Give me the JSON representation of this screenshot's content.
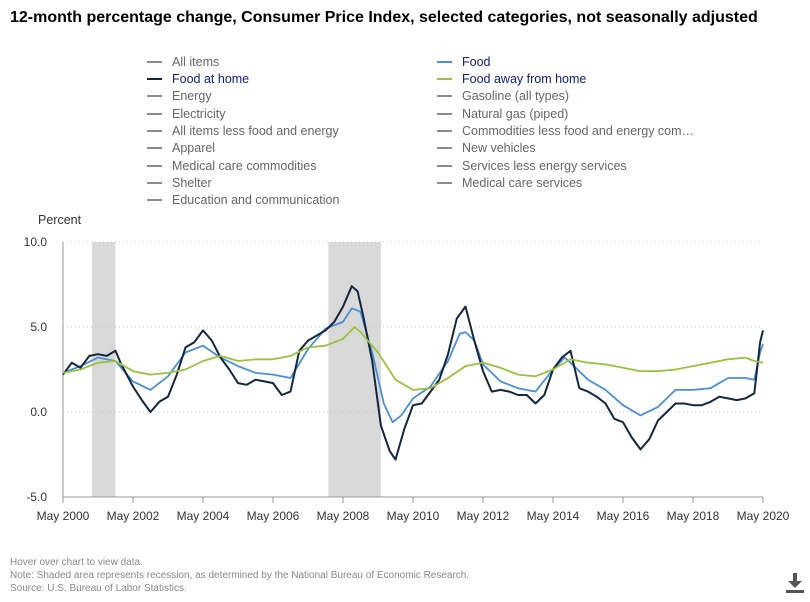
{
  "title": "12-month percentage change, Consumer Price Index, selected categories, not seasonally adjusted",
  "legend": [
    {
      "label": "All items",
      "color": "#8c8c8c",
      "active": false
    },
    {
      "label": "Food",
      "color": "#4a8fd4",
      "active": true
    },
    {
      "label": "Food at home",
      "color": "#15263e",
      "active": true
    },
    {
      "label": "Food away from home",
      "color": "#9bc23c",
      "active": true
    },
    {
      "label": "Energy",
      "color": "#8c8c8c",
      "active": false
    },
    {
      "label": "Gasoline (all types)",
      "color": "#8c8c8c",
      "active": false
    },
    {
      "label": "Electricity",
      "color": "#8c8c8c",
      "active": false
    },
    {
      "label": "Natural gas (piped)",
      "color": "#8c8c8c",
      "active": false
    },
    {
      "label": "All items less food and energy",
      "color": "#8c8c8c",
      "active": false
    },
    {
      "label": "Commodities less food and energy com…",
      "color": "#8c8c8c",
      "active": false
    },
    {
      "label": "Apparel",
      "color": "#8c8c8c",
      "active": false
    },
    {
      "label": "New vehicles",
      "color": "#8c8c8c",
      "active": false
    },
    {
      "label": "Medical care commodities",
      "color": "#8c8c8c",
      "active": false
    },
    {
      "label": "Services less energy services",
      "color": "#8c8c8c",
      "active": false
    },
    {
      "label": "Shelter",
      "color": "#8c8c8c",
      "active": false
    },
    {
      "label": "Medical care services",
      "color": "#8c8c8c",
      "active": false
    },
    {
      "label": "Education and communication",
      "color": "#8c8c8c",
      "active": false
    }
  ],
  "chart_data": {
    "type": "line",
    "ylabel": "Percent",
    "ylim": [
      -5.0,
      10.0
    ],
    "yticks": [
      10.0,
      5.0,
      0.0,
      -5.0
    ],
    "ytick_labels": [
      "10.0",
      "5.0",
      "0.0",
      "-5.0"
    ],
    "xlim": [
      "May 2000",
      "May 2020"
    ],
    "xtick_labels": [
      "May 2000",
      "May 2002",
      "May 2004",
      "May 2006",
      "May 2008",
      "May 2010",
      "May 2012",
      "May 2014",
      "May 2016",
      "May 2018",
      "May 2020"
    ],
    "grid": "horizontal dotted",
    "recessions": [
      {
        "start": "Mar 2001",
        "end": "Nov 2001"
      },
      {
        "start": "Dec 2007",
        "end": "Jun 2009"
      }
    ],
    "series": [
      {
        "name": "Food",
        "color": "#4a8fd4",
        "points": [
          [
            "May 2000",
            2.3
          ],
          [
            "Nov 2000",
            2.7
          ],
          [
            "May 2001",
            3.2
          ],
          [
            "Nov 2001",
            3.0
          ],
          [
            "May 2002",
            1.8
          ],
          [
            "Nov 2002",
            1.3
          ],
          [
            "May 2003",
            2.1
          ],
          [
            "Nov 2003",
            3.5
          ],
          [
            "May 2004",
            3.9
          ],
          [
            "Nov 2004",
            3.2
          ],
          [
            "May 2005",
            2.7
          ],
          [
            "Nov 2005",
            2.3
          ],
          [
            "May 2006",
            2.2
          ],
          [
            "Nov 2006",
            2.0
          ],
          [
            "May 2007",
            3.7
          ],
          [
            "Nov 2007",
            4.9
          ],
          [
            "May 2008",
            5.3
          ],
          [
            "Aug 2008",
            6.1
          ],
          [
            "Nov 2008",
            5.9
          ],
          [
            "Mar 2009",
            3.5
          ],
          [
            "Jul 2009",
            0.5
          ],
          [
            "Oct 2009",
            -0.6
          ],
          [
            "Jan 2010",
            -0.2
          ],
          [
            "May 2010",
            0.8
          ],
          [
            "Nov 2010",
            1.5
          ],
          [
            "May 2011",
            3.0
          ],
          [
            "Sep 2011",
            4.6
          ],
          [
            "Nov 2011",
            4.7
          ],
          [
            "Feb 2012",
            4.2
          ],
          [
            "May 2012",
            2.8
          ],
          [
            "Nov 2012",
            1.8
          ],
          [
            "May 2013",
            1.4
          ],
          [
            "Nov 2013",
            1.2
          ],
          [
            "May 2014",
            2.5
          ],
          [
            "Sep 2014",
            3.2
          ],
          [
            "Nov 2014",
            2.9
          ],
          [
            "May 2015",
            1.9
          ],
          [
            "Nov 2015",
            1.3
          ],
          [
            "May 2016",
            0.4
          ],
          [
            "Nov 2016",
            -0.2
          ],
          [
            "May 2017",
            0.3
          ],
          [
            "Nov 2017",
            1.3
          ],
          [
            "May 2018",
            1.3
          ],
          [
            "Nov 2018",
            1.4
          ],
          [
            "May 2019",
            2.0
          ],
          [
            "Nov 2019",
            2.0
          ],
          [
            "Feb 2020",
            1.9
          ],
          [
            "Apr 2020",
            3.5
          ],
          [
            "May 2020",
            4.0
          ]
        ]
      },
      {
        "name": "Food at home",
        "color": "#15263e",
        "points": [
          [
            "May 2000",
            2.2
          ],
          [
            "Aug 2000",
            2.9
          ],
          [
            "Nov 2000",
            2.6
          ],
          [
            "Feb 2001",
            3.3
          ],
          [
            "May 2001",
            3.4
          ],
          [
            "Aug 2001",
            3.3
          ],
          [
            "Nov 2001",
            3.6
          ],
          [
            "Jan 2002",
            2.8
          ],
          [
            "May 2002",
            1.5
          ],
          [
            "Aug 2002",
            0.7
          ],
          [
            "Nov 2002",
            0.0
          ],
          [
            "Feb 2003",
            0.6
          ],
          [
            "May 2003",
            0.9
          ],
          [
            "Aug 2003",
            2.2
          ],
          [
            "Nov 2003",
            3.8
          ],
          [
            "Feb 2004",
            4.1
          ],
          [
            "May 2004",
            4.8
          ],
          [
            "Aug 2004",
            4.2
          ],
          [
            "Nov 2004",
            3.2
          ],
          [
            "Feb 2005",
            2.5
          ],
          [
            "May 2005",
            1.7
          ],
          [
            "Aug 2005",
            1.6
          ],
          [
            "Nov 2005",
            1.9
          ],
          [
            "Feb 2006",
            1.8
          ],
          [
            "May 2006",
            1.7
          ],
          [
            "Aug 2006",
            1.0
          ],
          [
            "Nov 2006",
            1.2
          ],
          [
            "Feb 2007",
            3.6
          ],
          [
            "May 2007",
            4.2
          ],
          [
            "Aug 2007",
            4.5
          ],
          [
            "Nov 2007",
            4.8
          ],
          [
            "Feb 2008",
            5.3
          ],
          [
            "May 2008",
            6.2
          ],
          [
            "Aug 2008",
            7.4
          ],
          [
            "Oct 2008",
            7.1
          ],
          [
            "Dec 2008",
            5.6
          ],
          [
            "Mar 2009",
            3.0
          ],
          [
            "Jun 2009",
            -0.8
          ],
          [
            "Sep 2009",
            -2.3
          ],
          [
            "Nov 2009",
            -2.8
          ],
          [
            "Feb 2010",
            -1.0
          ],
          [
            "May 2010",
            0.4
          ],
          [
            "Aug 2010",
            0.5
          ],
          [
            "Nov 2010",
            1.2
          ],
          [
            "Feb 2011",
            1.9
          ],
          [
            "May 2011",
            3.4
          ],
          [
            "Aug 2011",
            5.5
          ],
          [
            "Nov 2011",
            6.2
          ],
          [
            "Feb 2012",
            4.2
          ],
          [
            "May 2012",
            2.4
          ],
          [
            "Aug 2012",
            1.2
          ],
          [
            "Nov 2012",
            1.3
          ],
          [
            "Feb 2013",
            1.2
          ],
          [
            "May 2013",
            1.0
          ],
          [
            "Aug 2013",
            1.0
          ],
          [
            "Nov 2013",
            0.5
          ],
          [
            "Feb 2014",
            1.0
          ],
          [
            "May 2014",
            2.5
          ],
          [
            "Aug 2014",
            3.2
          ],
          [
            "Nov 2014",
            3.6
          ],
          [
            "Feb 2015",
            1.4
          ],
          [
            "May 2015",
            1.2
          ],
          [
            "Aug 2015",
            0.9
          ],
          [
            "Nov 2015",
            0.5
          ],
          [
            "Feb 2016",
            -0.4
          ],
          [
            "May 2016",
            -0.6
          ],
          [
            "Aug 2016",
            -1.5
          ],
          [
            "Nov 2016",
            -2.2
          ],
          [
            "Feb 2017",
            -1.6
          ],
          [
            "May 2017",
            -0.5
          ],
          [
            "Aug 2017",
            0.0
          ],
          [
            "Nov 2017",
            0.5
          ],
          [
            "Feb 2018",
            0.5
          ],
          [
            "May 2018",
            0.4
          ],
          [
            "Aug 2018",
            0.4
          ],
          [
            "Nov 2018",
            0.6
          ],
          [
            "Feb 2019",
            0.9
          ],
          [
            "May 2019",
            0.8
          ],
          [
            "Aug 2019",
            0.7
          ],
          [
            "Nov 2019",
            0.8
          ],
          [
            "Feb 2020",
            1.1
          ],
          [
            "Apr 2020",
            4.1
          ],
          [
            "May 2020",
            4.8
          ]
        ]
      },
      {
        "name": "Food away from home",
        "color": "#9bc23c",
        "points": [
          [
            "May 2000",
            2.3
          ],
          [
            "Nov 2000",
            2.5
          ],
          [
            "May 2001",
            2.9
          ],
          [
            "Nov 2001",
            3.0
          ],
          [
            "May 2002",
            2.4
          ],
          [
            "Nov 2002",
            2.2
          ],
          [
            "May 2003",
            2.3
          ],
          [
            "Nov 2003",
            2.5
          ],
          [
            "May 2004",
            3.0
          ],
          [
            "Nov 2004",
            3.3
          ],
          [
            "May 2005",
            3.0
          ],
          [
            "Nov 2005",
            3.1
          ],
          [
            "May 2006",
            3.1
          ],
          [
            "Nov 2006",
            3.3
          ],
          [
            "May 2007",
            3.8
          ],
          [
            "Nov 2007",
            3.9
          ],
          [
            "May 2008",
            4.3
          ],
          [
            "Sep 2008",
            5.0
          ],
          [
            "Nov 2008",
            4.7
          ],
          [
            "May 2009",
            3.5
          ],
          [
            "Nov 2009",
            1.9
          ],
          [
            "May 2010",
            1.3
          ],
          [
            "Nov 2010",
            1.4
          ],
          [
            "May 2011",
            2.0
          ],
          [
            "Nov 2011",
            2.7
          ],
          [
            "May 2012",
            2.9
          ],
          [
            "Nov 2012",
            2.6
          ],
          [
            "May 2013",
            2.2
          ],
          [
            "Nov 2013",
            2.1
          ],
          [
            "May 2014",
            2.5
          ],
          [
            "Nov 2014",
            3.1
          ],
          [
            "May 2015",
            2.9
          ],
          [
            "Nov 2015",
            2.8
          ],
          [
            "May 2016",
            2.6
          ],
          [
            "Nov 2016",
            2.4
          ],
          [
            "May 2017",
            2.4
          ],
          [
            "Nov 2017",
            2.5
          ],
          [
            "May 2018",
            2.7
          ],
          [
            "Nov 2018",
            2.9
          ],
          [
            "May 2019",
            3.1
          ],
          [
            "Nov 2019",
            3.2
          ],
          [
            "Feb 2020",
            3.0
          ],
          [
            "May 2020",
            2.9
          ]
        ]
      }
    ]
  },
  "footer": {
    "line1": "Hover over chart to view data.",
    "line2": "Note: Shaded area represents recession, as determined by the National Bureau of Economic Research.",
    "line3": "Source: U.S. Bureau of Labor Statistics."
  },
  "download_icon": "download-icon"
}
